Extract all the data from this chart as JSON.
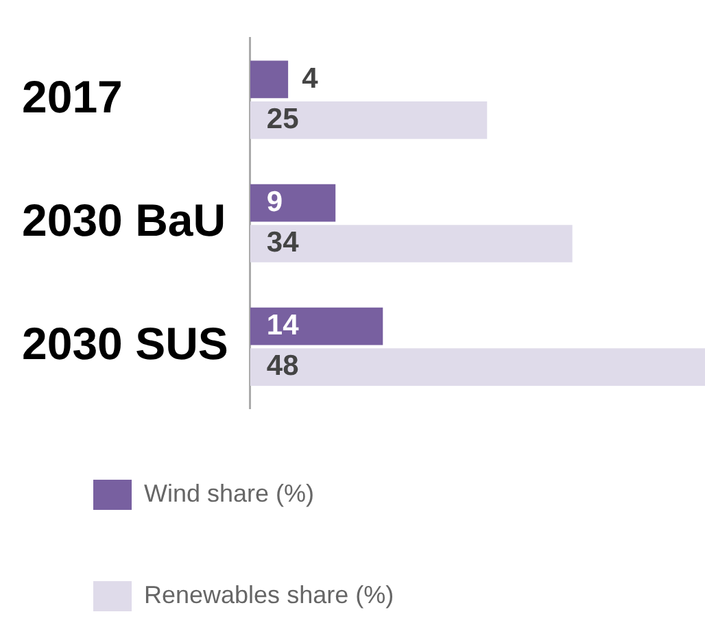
{
  "chart_data": {
    "type": "bar",
    "orientation": "horizontal",
    "categories": [
      "2017",
      "2030 BaU",
      "2030 SUS"
    ],
    "series": [
      {
        "name": "Wind share (%)",
        "color": "#7860a0",
        "values": [
          4,
          9,
          14
        ]
      },
      {
        "name": "Renewables share (%)",
        "color": "#dfdbea",
        "values": [
          25,
          34,
          48
        ]
      }
    ],
    "xlim": [
      0,
      48
    ],
    "tick_labels": "y",
    "data_labels": true,
    "legend": "bottom"
  }
}
